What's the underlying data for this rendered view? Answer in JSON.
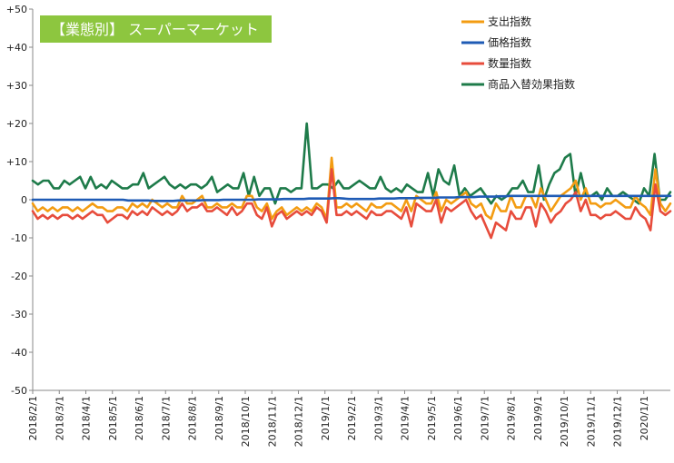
{
  "chart_data": {
    "type": "line",
    "title": "【業態別】 スーパーマーケット",
    "title_bg_color": "#8dc63f",
    "xlabel": "",
    "ylabel": "",
    "ylim": [
      -50,
      50
    ],
    "y_ticks": [
      "+50",
      "+40",
      "+30",
      "+20",
      "+10",
      "0",
      "-10",
      "-20",
      "-30",
      "-40",
      "-50"
    ],
    "x_tick_labels": [
      "2018/2/1",
      "2018/3/1",
      "2018/4/1",
      "2018/5/1",
      "2018/6/1",
      "2018/7/1",
      "2018/8/1",
      "2018/9/1",
      "2018/10/1",
      "2018/11/1",
      "2018/12/1",
      "2019/1/1",
      "2019/2/1",
      "2019/3/1",
      "2019/4/1",
      "2019/5/1",
      "2019/6/1",
      "2019/7/1",
      "2019/8/1",
      "2019/9/1",
      "2019/10/1",
      "2019/11/1",
      "2019/12/1",
      "2020/1/1"
    ],
    "x_range": [
      "2018/2/1",
      "2020/1/31"
    ],
    "grid": "none",
    "legend_position": "top-right",
    "series": [
      {
        "name": "支出指数",
        "color": "#f39c12",
        "values": [
          -1,
          -3,
          -2,
          -3,
          -2,
          -3,
          -2,
          -2,
          -3,
          -2,
          -3,
          -2,
          -1,
          -2,
          -2,
          -3,
          -3,
          -2,
          -2,
          -3,
          -1,
          -2,
          -1,
          -2,
          0,
          -1,
          -2,
          -1,
          -2,
          -2,
          1,
          -1,
          -1,
          0,
          1,
          -2,
          -2,
          -1,
          -2,
          -2,
          -1,
          -2,
          -2,
          1,
          1,
          -2,
          -3,
          -1,
          -5,
          -3,
          -2,
          -4,
          -3,
          -2,
          -3,
          -2,
          -3,
          -1,
          -2,
          -5,
          11,
          -2,
          -2,
          -1,
          -2,
          -1,
          -2,
          -3,
          -1,
          -2,
          -2,
          -1,
          -1,
          -2,
          -3,
          0,
          -3,
          1,
          0,
          -1,
          -1,
          2,
          -3,
          0,
          -1,
          0,
          1,
          2,
          -1,
          -2,
          -1,
          -4,
          -5,
          -1,
          -3,
          -3,
          1,
          -2,
          -2,
          1,
          1,
          -2,
          3,
          0,
          -3,
          -1,
          1,
          2,
          3,
          5,
          0,
          3,
          -1,
          -1,
          -2,
          -1,
          -1,
          0,
          -1,
          -2,
          -2,
          1,
          -1,
          -2,
          -4,
          8,
          -1,
          -3,
          -1
        ],
        "smooth": false
      },
      {
        "name": "価格指数",
        "color": "#1f5bb5",
        "values": [
          0,
          0,
          0,
          0,
          0,
          0,
          0,
          0,
          0,
          0,
          0,
          0,
          0,
          0,
          0,
          0,
          0,
          0,
          0,
          -0.2,
          -0.2,
          -0.2,
          -0.2,
          -0.2,
          -0.3,
          -0.3,
          -0.3,
          -0.3,
          -0.3,
          -0.2,
          -0.2,
          -0.2,
          -0.2,
          -0.2,
          -0.1,
          -0.1,
          -0.1,
          -0.1,
          0,
          0,
          0,
          0,
          0,
          0,
          0,
          0.1,
          0.1,
          0.1,
          0.1,
          0.1,
          0.2,
          0.2,
          0.2,
          0.2,
          0.2,
          0.3,
          0.3,
          0.3,
          0.3,
          0.3,
          0.4,
          0.4,
          0.3,
          0.2,
          0.2,
          0.2,
          0.2,
          0.2,
          0.2,
          0.3,
          0.3,
          0.3,
          0.3,
          0.4,
          0.4,
          0.4,
          0.4,
          0.5,
          0.5,
          0.5,
          0.5,
          0.6,
          0.6,
          0.6,
          0.6,
          0.7,
          0.7,
          0.7,
          0.7,
          0.8,
          0.8,
          0.8,
          0.8,
          0.9,
          0.9,
          1,
          1,
          1,
          1,
          1,
          1,
          1,
          1,
          1,
          1,
          1,
          1,
          1,
          1,
          1,
          1,
          1,
          1,
          1,
          1,
          1,
          1,
          1,
          1,
          1,
          1,
          1,
          1,
          1,
          1,
          1,
          1,
          1
        ],
        "smooth": false
      },
      {
        "name": "数量指数",
        "color": "#e74c3c",
        "values": [
          -3,
          -5,
          -4,
          -5,
          -4,
          -5,
          -4,
          -4,
          -5,
          -4,
          -5,
          -4,
          -3,
          -4,
          -4,
          -6,
          -5,
          -4,
          -4,
          -5,
          -3,
          -4,
          -3,
          -4,
          -2,
          -3,
          -4,
          -3,
          -4,
          -3,
          -1,
          -3,
          -2,
          -2,
          -1,
          -3,
          -3,
          -2,
          -3,
          -4,
          -2,
          -4,
          -3,
          -1,
          -1,
          -4,
          -5,
          -2,
          -7,
          -4,
          -3,
          -5,
          -4,
          -3,
          -4,
          -3,
          -4,
          -2,
          -3,
          -6,
          8,
          -4,
          -4,
          -3,
          -4,
          -3,
          -4,
          -5,
          -3,
          -4,
          -4,
          -3,
          -3,
          -4,
          -5,
          -2,
          -7,
          -1,
          -2,
          -3,
          -3,
          0,
          -6,
          -2,
          -3,
          -2,
          -1,
          0,
          -3,
          -5,
          -4,
          -7,
          -10,
          -6,
          -7,
          -8,
          -3,
          -5,
          -5,
          -2,
          -2,
          -7,
          -1,
          -3,
          -6,
          -4,
          -3,
          -1,
          0,
          2,
          -3,
          0,
          -4,
          -4,
          -5,
          -4,
          -4,
          -3,
          -4,
          -5,
          -5,
          -2,
          -4,
          -5,
          -8,
          4,
          -3,
          -4,
          -3
        ],
        "smooth": false
      },
      {
        "name": "商品入替効果指数",
        "color": "#1e7b4a",
        "values": [
          5,
          4,
          5,
          5,
          3,
          3,
          5,
          4,
          5,
          6,
          3,
          6,
          3,
          4,
          3,
          5,
          4,
          3,
          3,
          4,
          4,
          7,
          3,
          4,
          5,
          6,
          4,
          3,
          4,
          3,
          4,
          4,
          3,
          4,
          6,
          2,
          3,
          4,
          3,
          3,
          7,
          1,
          6,
          1,
          3,
          3,
          -1,
          3,
          3,
          2,
          3,
          3,
          20,
          3,
          3,
          4,
          4,
          3,
          5,
          3,
          3,
          4,
          5,
          4,
          3,
          3,
          6,
          3,
          2,
          3,
          2,
          4,
          3,
          2,
          2,
          7,
          1,
          8,
          5,
          4,
          9,
          1,
          3,
          1,
          2,
          3,
          1,
          -1,
          1,
          0,
          1,
          3,
          3,
          5,
          2,
          2,
          9,
          0,
          4,
          7,
          8,
          11,
          12,
          1,
          7,
          1,
          1,
          2,
          0,
          3,
          1,
          1,
          2,
          1,
          0,
          -1,
          3,
          1,
          12,
          0,
          0,
          2
        ],
        "smooth": false
      }
    ]
  }
}
